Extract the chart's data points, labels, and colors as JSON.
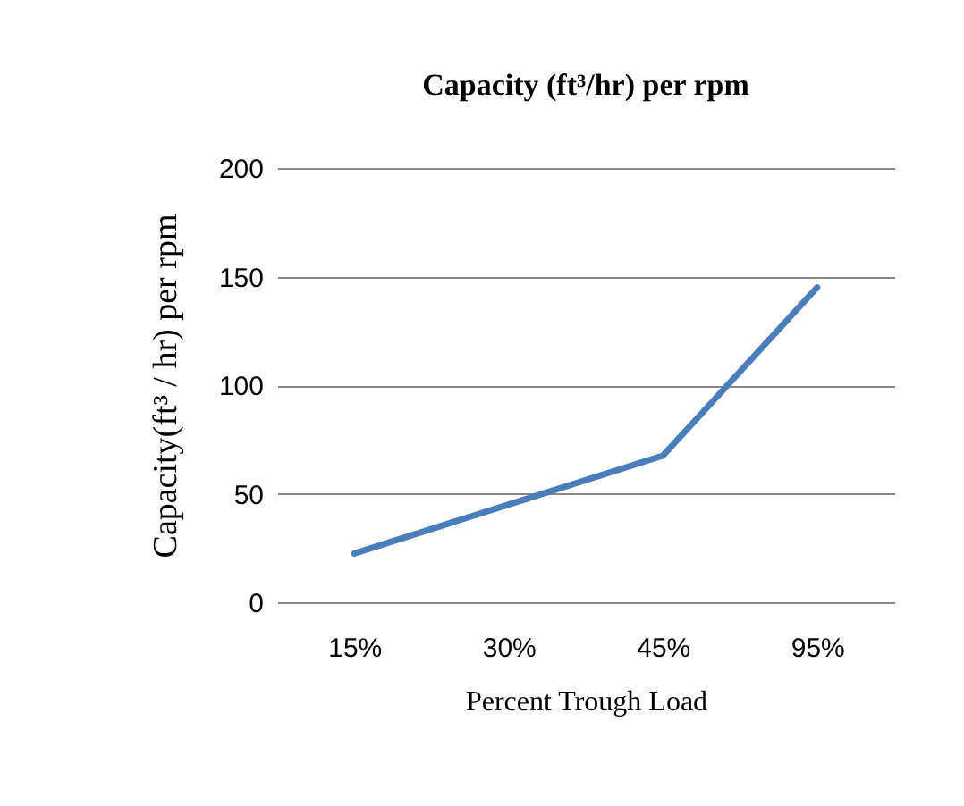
{
  "chart_data": {
    "type": "line",
    "title": "Capacity (ft³/hr) per rpm",
    "xlabel": "Percent Trough Load",
    "ylabel": "Capacity(ft³ / hr) per rpm",
    "categories": [
      "15%",
      "30%",
      "45%",
      "95%"
    ],
    "series": [
      {
        "color": "#4a7ebb",
        "values": [
          22.5,
          45,
          67.5,
          145
        ]
      }
    ],
    "ylim": [
      0,
      200
    ],
    "yticks": [
      0,
      50,
      100,
      150,
      200
    ],
    "grid": "y",
    "legend": false,
    "marker": "none"
  }
}
